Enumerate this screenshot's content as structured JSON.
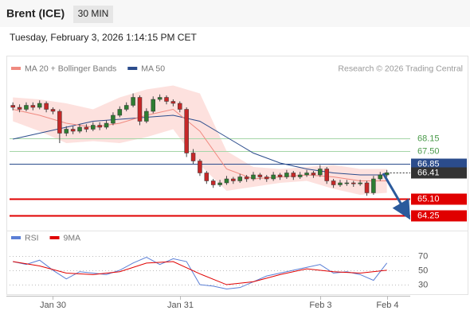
{
  "header": {
    "title": "Brent (ICE)",
    "timeframe": "30 MIN",
    "datetime": "Tuesday, February 3, 2026 1:14:15 PM CET"
  },
  "chart_data": [
    {
      "type": "candlestick",
      "legend": [
        {
          "name": "MA 20 + Bollinger Bands",
          "color": "#f08a80"
        },
        {
          "name": "MA 50",
          "color": "#2b4c8c"
        }
      ],
      "source": "Research © 2026 Trading Central",
      "xlim": [
        -0.5,
        59.5
      ],
      "ylim": [
        63.9,
        71.3
      ],
      "up_color": "#2e7d32",
      "down_color": "#c62828",
      "candles": [
        [
          69.8,
          69.95,
          69.55,
          69.7
        ],
        [
          69.7,
          69.85,
          69.45,
          69.6
        ],
        [
          69.6,
          69.95,
          69.5,
          69.8
        ],
        [
          69.8,
          69.95,
          69.55,
          69.7
        ],
        [
          69.7,
          70.05,
          69.6,
          69.9
        ],
        [
          69.9,
          70.0,
          69.45,
          69.6
        ],
        [
          69.6,
          69.7,
          69.35,
          69.5
        ],
        [
          69.5,
          69.6,
          67.9,
          68.4
        ],
        [
          68.4,
          68.75,
          68.25,
          68.6
        ],
        [
          68.6,
          68.75,
          68.35,
          68.5
        ],
        [
          68.5,
          68.85,
          68.4,
          68.7
        ],
        [
          68.7,
          68.85,
          68.45,
          68.6
        ],
        [
          68.6,
          68.95,
          68.5,
          68.8
        ],
        [
          68.8,
          68.95,
          68.55,
          68.7
        ],
        [
          68.7,
          69.05,
          68.6,
          68.9
        ],
        [
          68.9,
          69.45,
          68.8,
          69.3
        ],
        [
          69.3,
          69.75,
          69.2,
          69.6
        ],
        [
          69.6,
          69.95,
          69.5,
          69.8
        ],
        [
          69.8,
          70.4,
          69.7,
          70.2
        ],
        [
          70.2,
          70.3,
          68.8,
          69.0
        ],
        [
          69.0,
          69.65,
          68.9,
          69.5
        ],
        [
          69.5,
          70.25,
          69.4,
          70.1
        ],
        [
          70.1,
          70.35,
          70.0,
          70.2
        ],
        [
          70.2,
          70.3,
          69.85,
          70.0
        ],
        [
          70.0,
          70.1,
          69.75,
          69.9
        ],
        [
          69.9,
          70.0,
          69.45,
          69.6
        ],
        [
          69.6,
          69.7,
          67.2,
          67.4
        ],
        [
          67.4,
          67.6,
          66.85,
          67.0
        ],
        [
          67.0,
          67.1,
          66.25,
          66.4
        ],
        [
          66.4,
          66.5,
          65.85,
          66.0
        ],
        [
          66.0,
          66.1,
          65.65,
          65.8
        ],
        [
          65.8,
          66.05,
          65.7,
          65.9
        ],
        [
          65.9,
          66.25,
          65.8,
          66.1
        ],
        [
          66.1,
          66.2,
          65.85,
          66.0
        ],
        [
          66.0,
          66.35,
          65.9,
          66.2
        ],
        [
          66.2,
          66.3,
          65.95,
          66.1
        ],
        [
          66.1,
          66.45,
          66.0,
          66.3
        ],
        [
          66.3,
          66.4,
          66.05,
          66.2
        ],
        [
          66.2,
          66.3,
          65.95,
          66.1
        ],
        [
          66.1,
          66.45,
          66.0,
          66.3
        ],
        [
          66.3,
          66.4,
          66.05,
          66.2
        ],
        [
          66.2,
          66.55,
          66.1,
          66.4
        ],
        [
          66.4,
          66.5,
          66.05,
          66.2
        ],
        [
          66.2,
          66.45,
          66.1,
          66.3
        ],
        [
          66.3,
          66.55,
          66.2,
          66.4
        ],
        [
          66.4,
          66.5,
          66.15,
          66.3
        ],
        [
          66.3,
          66.8,
          66.2,
          66.6
        ],
        [
          66.6,
          66.7,
          65.85,
          66.0
        ],
        [
          66.0,
          66.1,
          65.65,
          65.8
        ],
        [
          65.8,
          66.05,
          65.7,
          65.9
        ],
        [
          65.9,
          66.05,
          65.75,
          65.9
        ],
        [
          65.9,
          66.0,
          65.7,
          65.85
        ],
        [
          65.85,
          66.05,
          65.75,
          65.9
        ],
        [
          65.9,
          66.0,
          65.25,
          65.4
        ],
        [
          65.4,
          66.25,
          65.3,
          66.1
        ],
        [
          66.1,
          66.45,
          66.0,
          66.3
        ],
        [
          66.3,
          66.55,
          66.2,
          66.41
        ]
      ],
      "ma_x": [
        0,
        4,
        8,
        12,
        16,
        20,
        24,
        28,
        32,
        36,
        40,
        44,
        48,
        52,
        56
      ],
      "ma20": [
        69.6,
        69.3,
        68.9,
        68.7,
        68.9,
        69.3,
        69.6,
        68.5,
        66.6,
        66.1,
        66.2,
        66.3,
        66.2,
        66.0,
        66.0
      ],
      "ma50": [
        68.1,
        68.4,
        68.7,
        69.0,
        69.1,
        69.2,
        69.3,
        69.0,
        68.2,
        67.4,
        66.9,
        66.6,
        66.4,
        66.3,
        66.3
      ],
      "bb_upper": [
        70.2,
        70.1,
        69.9,
        69.6,
        70.2,
        70.6,
        70.8,
        70.4,
        67.5,
        66.7,
        66.6,
        66.7,
        66.8,
        66.6,
        66.6
      ],
      "bb_lower": [
        69.0,
        68.5,
        67.9,
        68.0,
        67.9,
        68.2,
        68.6,
        66.8,
        65.5,
        65.7,
        65.9,
        66.0,
        65.6,
        65.3,
        65.4
      ],
      "band_color": "#fcd9d6",
      "levels": [
        68.15,
        {
          "value": 67.5,
          "label": "67.50"
        },
        66.85,
        66.41,
        {
          "value": 65.1,
          "label": "65.10"
        },
        64.25
      ],
      "level_colors": [
        "#a5d6a7",
        "#a5d6a7",
        "#2b4c8c",
        "#333333",
        "#e00000",
        "#e00000"
      ],
      "level_boxed": [
        false,
        false,
        true,
        true,
        true,
        true
      ],
      "level_dashed": [
        false,
        false,
        false,
        true,
        false,
        false
      ]
    },
    {
      "type": "line",
      "xlim": [
        -0.5,
        59.5
      ],
      "ylim": [
        19,
        83
      ],
      "yticks": [
        70,
        50,
        30
      ],
      "xticks": [
        {
          "value": 6,
          "label": "Jan 30"
        },
        {
          "value": 25,
          "label": "Jan 31"
        },
        {
          "value": 46,
          "label": "Feb 3"
        },
        {
          "value": 56,
          "label": "Feb 4"
        }
      ],
      "series": [
        {
          "name": "RSI",
          "color": "#5b7fd6",
          "x": [
            0,
            2,
            4,
            6,
            8,
            10,
            12,
            14,
            16,
            18,
            20,
            22,
            24,
            26,
            28,
            30,
            32,
            34,
            36,
            38,
            40,
            42,
            44,
            46,
            48,
            50,
            52,
            54,
            56
          ],
          "values": [
            62,
            58,
            64,
            50,
            38,
            48,
            46,
            44,
            50,
            60,
            68,
            58,
            66,
            62,
            30,
            28,
            24,
            26,
            34,
            42,
            46,
            50,
            54,
            58,
            46,
            48,
            44,
            36,
            60
          ]
        },
        {
          "name": "9MA",
          "color": "#e00000",
          "x": [
            0,
            4,
            8,
            12,
            16,
            20,
            24,
            28,
            32,
            36,
            40,
            44,
            48,
            52,
            56
          ],
          "values": [
            62,
            56,
            46,
            44,
            48,
            60,
            62,
            45,
            30,
            34,
            44,
            52,
            48,
            46,
            50
          ]
        }
      ]
    }
  ]
}
